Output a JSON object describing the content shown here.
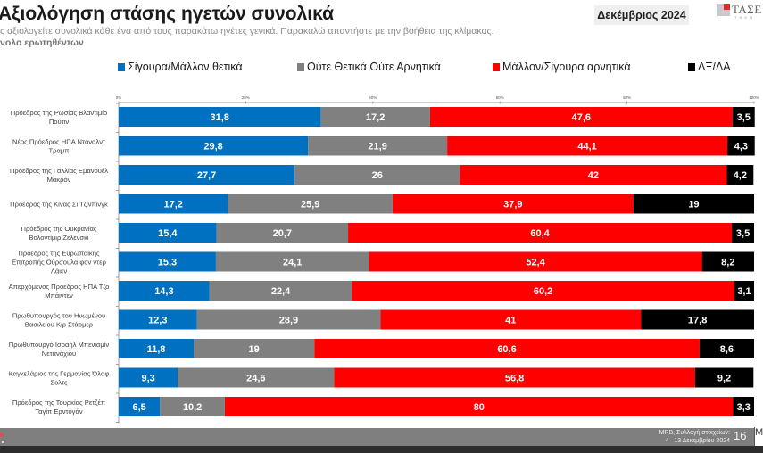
{
  "header": {
    "title": "Αξιολόγηση στάσης ηγετών συνολικά",
    "subtitle": "ς αξιολογείτε συνολικά κάθε ένα από τους παρακάτω ηγέτες γενικά. Παρακαλώ απαντήστε με την βοήθεια της κλίμακας.",
    "base": "νολο ερωτηθέντων",
    "date_badge": "Δεκέμβριος 2024",
    "logo_text": "ΤΑΣΕ",
    "logo_subtext": "TREN"
  },
  "footer": {
    "source_line1": "MRB, Συλλογή στοιχείων:",
    "source_line2": "4 –13 Δεκεμβρίου 2024",
    "page_number": "16",
    "corner_text": "M"
  },
  "colors": {
    "positive": "#0070c0",
    "neutral": "#808080",
    "negative": "#ff0000",
    "dk": "#000000"
  },
  "chart_data": {
    "type": "bar",
    "orientation": "horizontal",
    "stacked": true,
    "title": "Αξιολόγηση στάσης ηγετών συνολικά",
    "xlabel": "",
    "ylabel": "",
    "xlim": [
      0,
      100
    ],
    "x_ticks": [
      "0%",
      "20%",
      "40%",
      "60%",
      "80%",
      "100%"
    ],
    "x_tick_values": [
      0,
      20,
      40,
      60,
      80,
      100
    ],
    "grid": false,
    "legend_position": "top",
    "categories": [
      [
        "Πρόεδρος της Ρωσίας Βλαντιμίρ",
        "Πούτιν"
      ],
      [
        "Νέος Πρόεδρος ΗΠΑ Ντόναλντ",
        "Τραμπ"
      ],
      [
        "Πρόεδρος της Γαλλίας Εμανουέλ",
        "Μακρόν"
      ],
      [
        "Προέδρος της Κίνας Σι Τζινπίνγκ"
      ],
      [
        "Πρόεδρος της Ουκρανίας",
        "Βολοντίμιρ Ζελένσκι"
      ],
      [
        "Πρόεδρος της Ευρωπαϊκής",
        "Επιτροπής Ούρσουλα φον ντερ",
        "Λάιεν"
      ],
      [
        "Απερχόμενος Πρόεδρος ΗΠΑ Τζο",
        "Μπάιντεν"
      ],
      [
        "Πρωθυπουργός του Ηνωμένου",
        "Βασιλείου Κιρ Στάρμερ"
      ],
      [
        "Πρωθυπουργό Ισραήλ Μπενιαμίν",
        "Νετανάχιου"
      ],
      [
        "Καγκελάριος της Γερμανίας Όλαφ",
        "Σολτς"
      ],
      [
        "Πρόεδρος της Τουρκίας Ρετζέπ",
        "Ταγίπ Ερντογάν"
      ]
    ],
    "series": [
      {
        "name": "Σίγουρα/Μάλλον θετικά",
        "color": "#0070c0",
        "values": [
          31.8,
          29.8,
          27.7,
          17.2,
          15.4,
          15.3,
          14.3,
          12.3,
          11.8,
          9.3,
          6.5
        ],
        "labels": [
          "31,8",
          "29,8",
          "27,7",
          "17,2",
          "15,4",
          "15,3",
          "14,3",
          "12,3",
          "11,8",
          "9,3",
          "6,5"
        ]
      },
      {
        "name": "Ούτε Θετικά Ούτε Αρνητικά",
        "color": "#808080",
        "values": [
          17.2,
          21.9,
          26,
          25.9,
          20.7,
          24.1,
          22.4,
          28.9,
          19,
          24.6,
          10.2
        ],
        "labels": [
          "17,2",
          "21,9",
          "26",
          "25,9",
          "20,7",
          "24,1",
          "22,4",
          "28,9",
          "19",
          "24,6",
          "10,2"
        ]
      },
      {
        "name": "Μάλλον/Σίγουρα αρνητικά",
        "color": "#ff0000",
        "values": [
          47.6,
          44.1,
          42,
          37.9,
          60.4,
          52.4,
          60.2,
          41,
          60.6,
          56.8,
          80
        ],
        "labels": [
          "47,6",
          "44,1",
          "42",
          "37,9",
          "60,4",
          "52,4",
          "60,2",
          "41",
          "60,6",
          "56,8",
          "80"
        ]
      },
      {
        "name": "ΔΞ/ΔΑ",
        "color": "#000000",
        "values": [
          3.5,
          4.3,
          4.2,
          19,
          3.5,
          8.2,
          3.1,
          17.8,
          8.6,
          9.2,
          3.3
        ],
        "labels": [
          "3,5",
          "4,3",
          "4,2",
          "19",
          "3,5",
          "8,2",
          "3,1",
          "17,8",
          "8,6",
          "9,2",
          "3,3"
        ]
      }
    ]
  }
}
